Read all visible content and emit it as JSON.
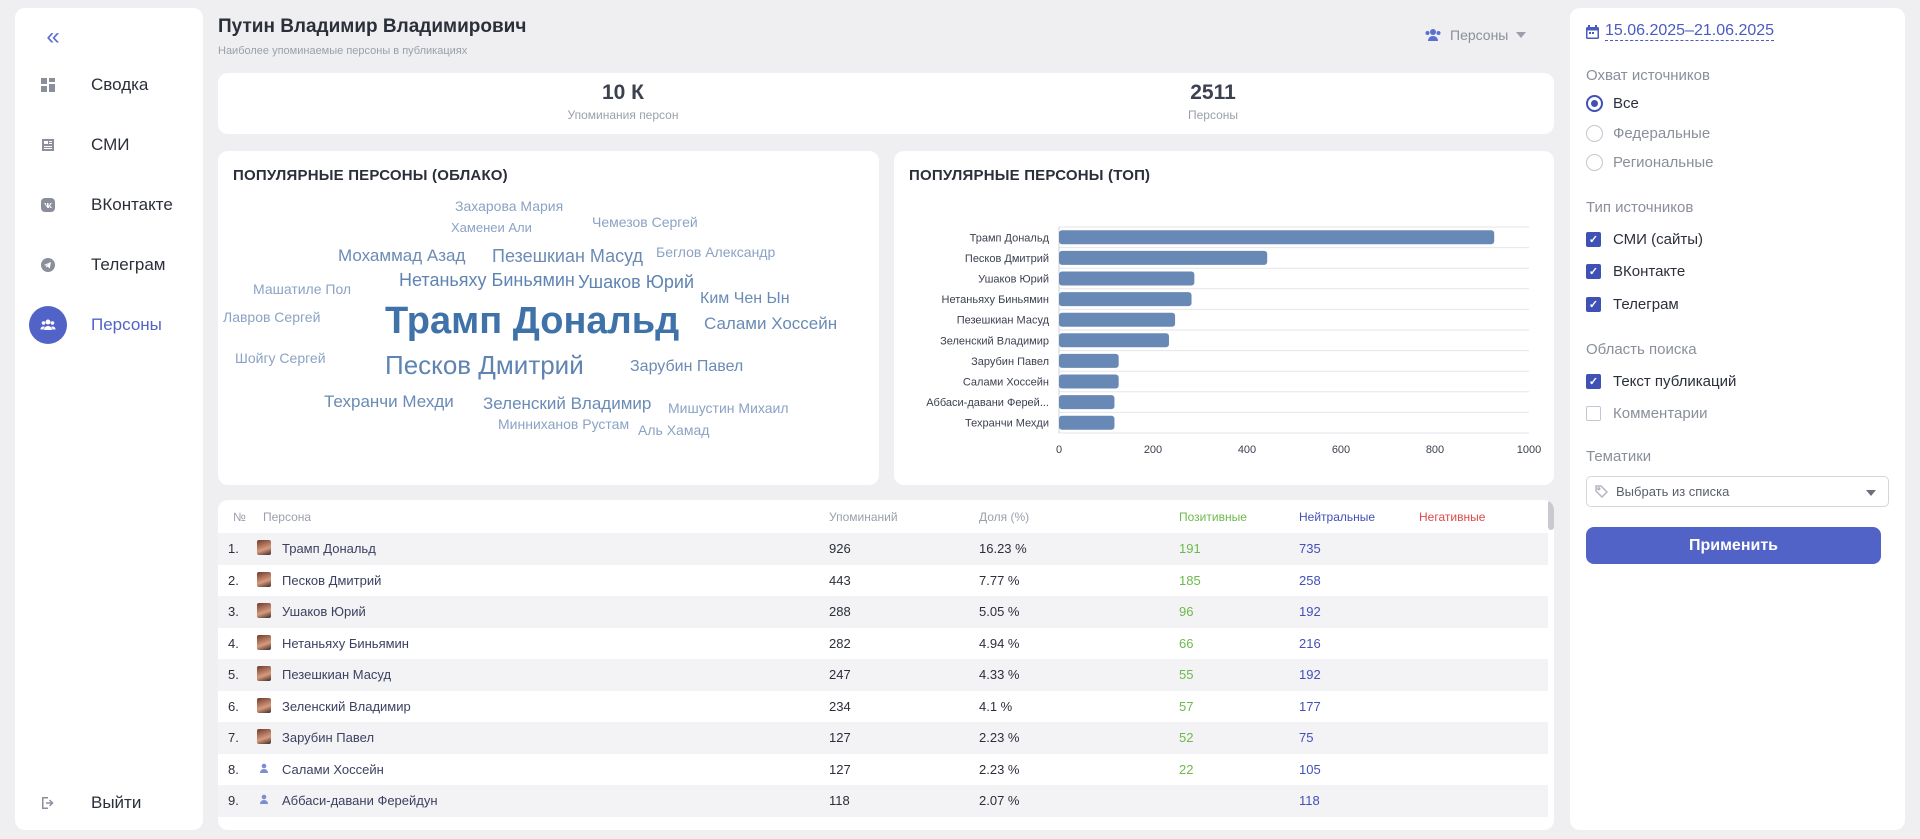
{
  "sidebar": {
    "collapse_icon": "chevrons-left-icon",
    "items": [
      {
        "label": "Сводка",
        "icon": "dashboard-icon",
        "active": false
      },
      {
        "label": "СМИ",
        "icon": "newspaper-icon",
        "active": false
      },
      {
        "label": "ВКонтакте",
        "icon": "vk-icon",
        "active": false
      },
      {
        "label": "Телеграм",
        "icon": "telegram-icon",
        "active": false
      },
      {
        "label": "Персоны",
        "icon": "people-icon",
        "active": true
      }
    ],
    "logout_label": "Выйти"
  },
  "header": {
    "title": "Путин Владимир Владимирович",
    "subtitle": "Наиболее упоминаемые персоны в публикациях",
    "persons_dropdown": "Персоны"
  },
  "stats": {
    "mentions_value": "10 К",
    "mentions_label": "Упоминания персон",
    "persons_value": "2511",
    "persons_label": "Персоны"
  },
  "cloud": {
    "title": "ПОПУЛЯРНЫЕ ПЕРСОНЫ (ОБЛАКО)",
    "words": [
      "Захарова Мария",
      "Хаменеи Али",
      "Чемезов Сергей",
      "Мохаммад Азад",
      "Пезешкиан Масуд",
      "Беглов Александр",
      "Машатиле Пол",
      "Нетаньяху Биньямин",
      "Ушаков Юрий",
      "Ким Чен Ын",
      "Лавров Сергей",
      "Трамп Дональд",
      "Салами Хоссейн",
      "Шойгу Сергей",
      "Песков Дмитрий",
      "Зарубин Павел",
      "Техранчи Мехди",
      "Зеленский Владимир",
      "Мишустин Михаил",
      "Минниханов Рустам",
      "Аль Хамад"
    ]
  },
  "chart_data": {
    "type": "bar",
    "orientation": "horizontal",
    "title": "ПОПУЛЯРНЫЕ ПЕРСОНЫ (ТОП)",
    "categories": [
      "Трамп Дональд",
      "Песков Дмитрий",
      "Ушаков Юрий",
      "Нетаньяху Биньямин",
      "Пезешкиан Масуд",
      "Зеленский Владимир",
      "Зарубин Павел",
      "Салами Хоссейн",
      "Аббаси-давани Ферей...",
      "Техранчи Мехди"
    ],
    "values": [
      926,
      443,
      288,
      282,
      247,
      234,
      127,
      127,
      118,
      118
    ],
    "xlim": [
      0,
      1000
    ],
    "xticks": [
      "0",
      "200",
      "400",
      "600",
      "800",
      "1000"
    ],
    "grid": true,
    "bar_color": "#6889b5"
  },
  "table": {
    "headers": {
      "num": "№",
      "person": "Персона",
      "mentions": "Упоминаний",
      "share": "Доля (%)",
      "positive": "Позитивные",
      "neutral": "Нейтральные",
      "negative": "Негативные"
    },
    "rows": [
      {
        "num": "1.",
        "name": "Трамп Дональд",
        "mentions": "926",
        "share": "16.23 %",
        "positive": "191",
        "neutral": "735",
        "negative": "",
        "avatar": "photo"
      },
      {
        "num": "2.",
        "name": "Песков Дмитрий",
        "mentions": "443",
        "share": "7.77 %",
        "positive": "185",
        "neutral": "258",
        "negative": "",
        "avatar": "photo"
      },
      {
        "num": "3.",
        "name": "Ушаков Юрий",
        "mentions": "288",
        "share": "5.05 %",
        "positive": "96",
        "neutral": "192",
        "negative": "",
        "avatar": "photo"
      },
      {
        "num": "4.",
        "name": "Нетаньяху Биньямин",
        "mentions": "282",
        "share": "4.94 %",
        "positive": "66",
        "neutral": "216",
        "negative": "",
        "avatar": "photo"
      },
      {
        "num": "5.",
        "name": "Пезешкиан Масуд",
        "mentions": "247",
        "share": "4.33 %",
        "positive": "55",
        "neutral": "192",
        "negative": "",
        "avatar": "photo"
      },
      {
        "num": "6.",
        "name": "Зеленский Владимир",
        "mentions": "234",
        "share": "4.1 %",
        "positive": "57",
        "neutral": "177",
        "negative": "",
        "avatar": "photo"
      },
      {
        "num": "7.",
        "name": "Зарубин Павел",
        "mentions": "127",
        "share": "2.23 %",
        "positive": "52",
        "neutral": "75",
        "negative": "",
        "avatar": "photo"
      },
      {
        "num": "8.",
        "name": "Салами Хоссейн",
        "mentions": "127",
        "share": "2.23 %",
        "positive": "22",
        "neutral": "105",
        "negative": "",
        "avatar": "default"
      },
      {
        "num": "9.",
        "name": "Аббаси-давани Ферейдун",
        "mentions": "118",
        "share": "2.07 %",
        "positive": "",
        "neutral": "118",
        "negative": "",
        "avatar": "default"
      }
    ]
  },
  "filters": {
    "date_from": "15.06.2025",
    "date_sep": "–",
    "date_to": "21.06.2025",
    "coverage_title": "Охват источников",
    "coverage_options": [
      {
        "label": "Все",
        "selected": true
      },
      {
        "label": "Федеральные",
        "selected": false
      },
      {
        "label": "Региональные",
        "selected": false
      }
    ],
    "source_type_title": "Тип источников",
    "source_types": [
      {
        "label": "СМИ (сайты)",
        "checked": true
      },
      {
        "label": "ВКонтакте",
        "checked": true
      },
      {
        "label": "Телеграм",
        "checked": true
      }
    ],
    "search_area_title": "Область поиска",
    "search_areas": [
      {
        "label": "Текст публикаций",
        "checked": true
      },
      {
        "label": "Комментарии",
        "checked": false
      }
    ],
    "topics_title": "Тематики",
    "topics_placeholder": "Выбрать из списка",
    "apply_label": "Применить"
  }
}
